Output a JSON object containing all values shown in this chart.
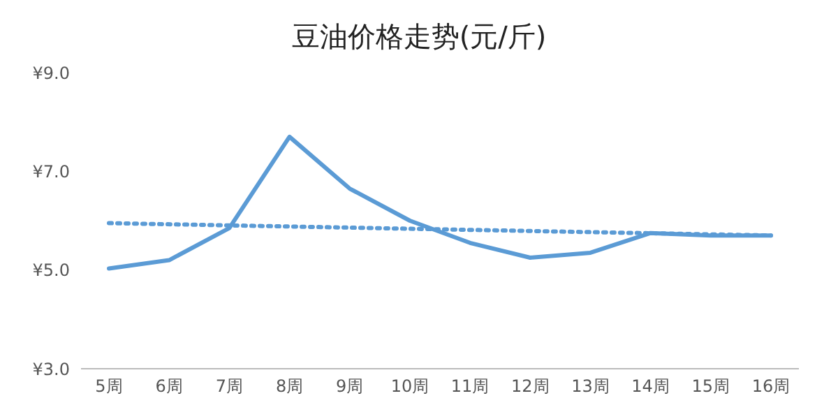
{
  "chart_data": {
    "type": "line",
    "title": "豆油价格走势(元/斤)",
    "categories": [
      "5周",
      "6周",
      "7周",
      "8周",
      "9周",
      "10周",
      "11周",
      "12周",
      "13周",
      "14周",
      "15周",
      "16周"
    ],
    "series": [
      {
        "color": "#5b9bd5",
        "values": [
          5.03,
          5.2,
          5.85,
          7.7,
          6.65,
          6.0,
          5.55,
          5.25,
          5.35,
          5.75,
          5.7,
          5.7
        ],
        "line_style": "solid"
      },
      {
        "color": "#5b9bd5",
        "values": [
          5.95,
          null,
          null,
          null,
          null,
          null,
          null,
          null,
          null,
          null,
          null,
          5.7
        ],
        "line_style": "dotted"
      }
    ],
    "ylim": [
      3,
      9
    ],
    "yticks": [
      {
        "value": 3,
        "label": "¥3.0"
      },
      {
        "value": 5,
        "label": "¥5.0"
      },
      {
        "value": 7,
        "label": "¥7.0"
      },
      {
        "value": 9,
        "label": "¥9.0"
      }
    ],
    "grid": false,
    "marker": "none"
  }
}
